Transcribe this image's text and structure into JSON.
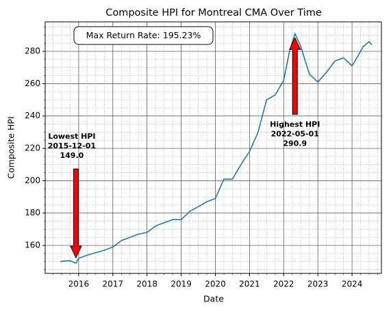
{
  "chart_data": {
    "type": "line",
    "title": "Composite HPI for Montreal CMA Over Time",
    "xlabel": "Date",
    "ylabel": "Composite HPI",
    "x": [
      2015.46,
      2015.62,
      2015.75,
      2015.92,
      2016.0,
      2016.25,
      2016.5,
      2016.75,
      2017.0,
      2017.25,
      2017.5,
      2017.75,
      2018.0,
      2018.25,
      2018.5,
      2018.75,
      2019.0,
      2019.25,
      2019.5,
      2019.75,
      2020.0,
      2020.25,
      2020.5,
      2020.75,
      2021.0,
      2021.25,
      2021.5,
      2021.75,
      2022.0,
      2022.17,
      2022.33,
      2022.5,
      2022.75,
      2023.0,
      2023.25,
      2023.5,
      2023.75,
      2024.0,
      2024.17,
      2024.33,
      2024.5,
      2024.58
    ],
    "series": [
      {
        "name": "Composite HPI",
        "color": "#1f77b4",
        "values": [
          150,
          150.5,
          150.5,
          149.0,
          152,
          154,
          155.5,
          157,
          159,
          163,
          165,
          167,
          168,
          172,
          174,
          176,
          176,
          181,
          184,
          187,
          189,
          201,
          201,
          210,
          218,
          230,
          250,
          253,
          262,
          280,
          290.9,
          283,
          266,
          261,
          267,
          274,
          276,
          271,
          277,
          283,
          286,
          284
        ]
      }
    ],
    "xlim": [
      2015.02,
      2024.86
    ],
    "xticks": [
      2016,
      2017,
      2018,
      2019,
      2020,
      2021,
      2022,
      2023,
      2024
    ],
    "ylim": [
      142.7,
      298.2
    ],
    "yticks": [
      160,
      180,
      200,
      220,
      240,
      260,
      280
    ],
    "minor_xticks": [
      2015.25,
      2015.5,
      2015.75,
      2016.25,
      2016.5,
      2016.75,
      2017.25,
      2017.5,
      2017.75,
      2018.25,
      2018.5,
      2018.75,
      2019.25,
      2019.5,
      2019.75,
      2020.25,
      2020.5,
      2020.75,
      2021.25,
      2021.5,
      2021.75,
      2022.25,
      2022.5,
      2022.75,
      2023.25,
      2023.5,
      2023.75,
      2024.25,
      2024.5,
      2024.75
    ],
    "minor_yticks": [
      145,
      150,
      155,
      165,
      170,
      175,
      185,
      190,
      195,
      205,
      210,
      215,
      225,
      230,
      235,
      245,
      250,
      255,
      265,
      270,
      275,
      285,
      290,
      295
    ],
    "grid": true,
    "textbox": "Max Return Rate: 195.23%",
    "annotations": [
      {
        "lines": [
          "Lowest HPI",
          "2015-12-01",
          "149.0"
        ],
        "x": 2015.92,
        "y": 149.0,
        "direction": "down",
        "color": "#ff0000"
      },
      {
        "lines": [
          "Highest HPI",
          "2022-05-01",
          "290.9"
        ],
        "x": 2022.33,
        "y": 290.9,
        "direction": "up",
        "color": "#ff0000"
      }
    ]
  }
}
